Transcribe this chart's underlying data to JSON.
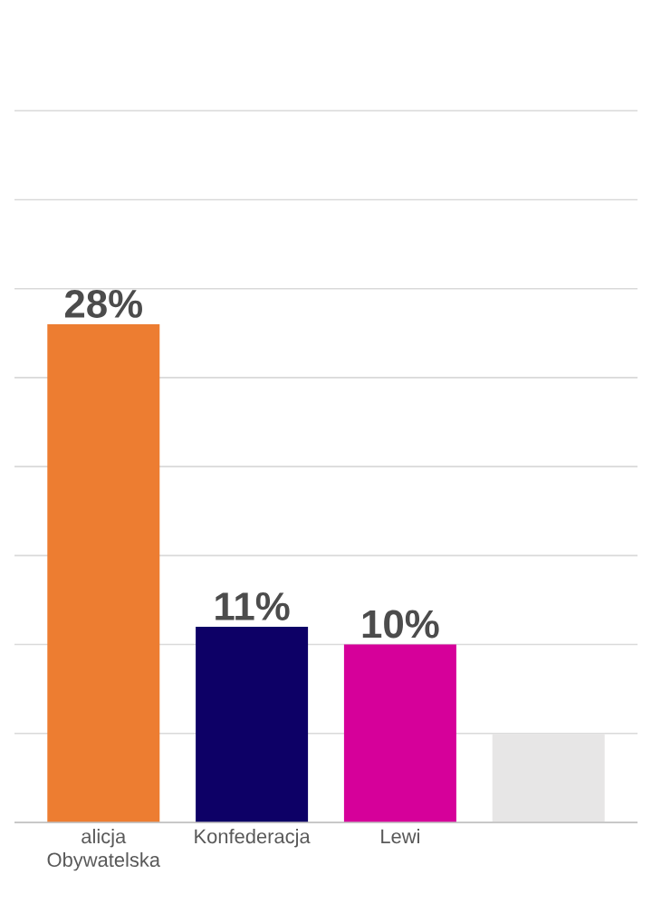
{
  "chart_data": {
    "type": "bar",
    "categories": [
      "alicja Obywatelska",
      "Konfederacja",
      "Lewi",
      null
    ],
    "values": [
      28,
      11,
      10,
      5
    ],
    "colors": [
      "#ed7d31",
      "#0d0066",
      "#d6009a",
      "#e7e6e6"
    ],
    "value_labels": [
      "28%",
      "11%",
      "10%",
      null
    ],
    "grid": "y"
  }
}
